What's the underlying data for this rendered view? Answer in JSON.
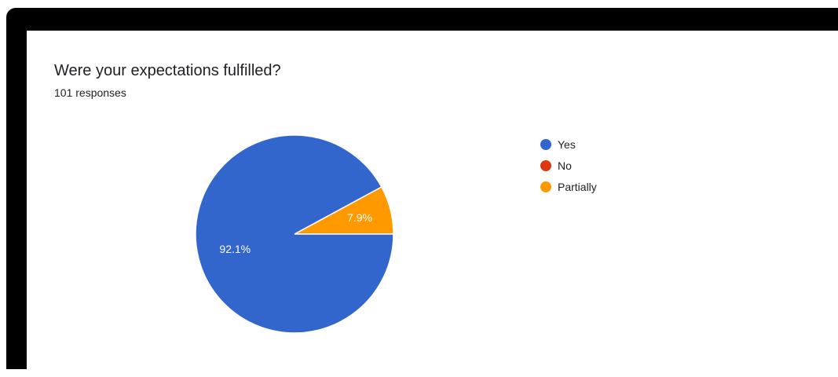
{
  "header": {
    "title": "Were your expectations fulfilled?",
    "subtitle": "101 responses"
  },
  "chart_data": {
    "type": "pie",
    "title": "Were your expectations fulfilled?",
    "categories": [
      "Yes",
      "No",
      "Partially"
    ],
    "values": [
      92.1,
      0,
      7.9
    ],
    "labels": [
      "92.1%",
      "",
      "7.9%"
    ],
    "colors": [
      "#3366cc",
      "#dc3912",
      "#ff9900"
    ],
    "legend_position": "right"
  }
}
